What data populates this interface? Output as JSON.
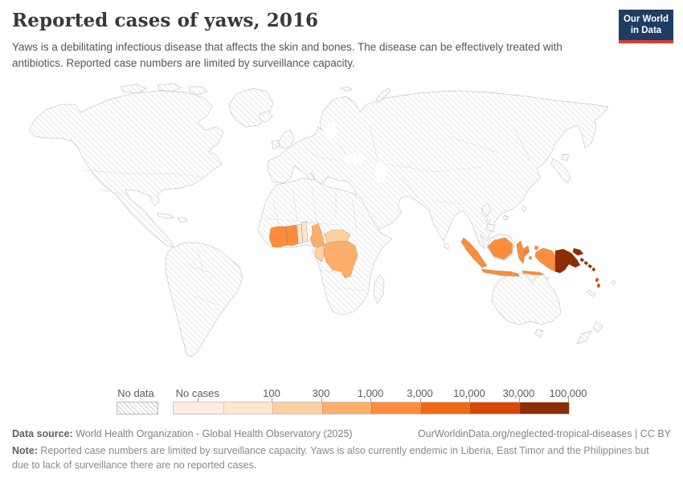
{
  "header": {
    "title": "Reported cases of yaws, 2016",
    "subtitle": "Yaws is a debilitating infectious disease that affects the skin and bones. The disease can be effectively treated with antibiotics. Reported case numbers are limited by surveillance capacity."
  },
  "logo": {
    "line1": "Our World",
    "line2": "in Data",
    "bg_color": "#1d3d63",
    "accent_color": "#dc3e32"
  },
  "chart_data": {
    "type": "choropleth_map",
    "title": "Reported cases of yaws, 2016",
    "year": "2016",
    "unit": "reported cases of yaws",
    "projection": "World",
    "legend": {
      "no_data": {
        "label": "No data",
        "pattern": "diagonal-hatch"
      },
      "bins": [
        {
          "label": "No cases",
          "label_align": "center",
          "range": "no cases",
          "color": "#fbeee1"
        },
        {
          "label": "100",
          "range": "0–100",
          "color": "#fee6ce"
        },
        {
          "label": "300",
          "range": "100–300",
          "color": "#fdd0a2"
        },
        {
          "label": "1,000",
          "range": "300–1,000",
          "color": "#fdae6b"
        },
        {
          "label": "3,000",
          "range": "1,000–3,000",
          "color": "#fd8d3c"
        },
        {
          "label": "10,000",
          "range": "3,000–10,000",
          "color": "#f16913"
        },
        {
          "label": "30,000",
          "range": "10,000–30,000",
          "color": "#d94801"
        },
        {
          "label": "100,000",
          "range": "30,000–100,000",
          "color": "#8c2d04"
        }
      ]
    },
    "entities": [
      {
        "id": "cote-divoire",
        "name": "Cote d'Ivoire",
        "value_range": "1,000–3,000",
        "color": "#fd8d3c"
      },
      {
        "id": "ghana",
        "name": "Ghana",
        "value_range": "1,000–3,000",
        "color": "#fd8d3c"
      },
      {
        "id": "togo",
        "name": "Togo",
        "value_range": "0–100",
        "color": "#fee6ce"
      },
      {
        "id": "benin",
        "name": "Benin",
        "value_range": "0–100",
        "color": "#fee6ce"
      },
      {
        "id": "cameroon",
        "name": "Cameroon",
        "value_range": "300–1,000",
        "color": "#fdae6b"
      },
      {
        "id": "central-african-republic",
        "name": "Central African Republic",
        "value_range": "100–300",
        "color": "#fdd0a2"
      },
      {
        "id": "congo",
        "name": "Congo",
        "value_range": "100–300",
        "color": "#fdd0a2"
      },
      {
        "id": "democratic-republic-of-congo",
        "name": "Democratic Republic of Congo",
        "value_range": "300–1,000",
        "color": "#fdae6b"
      },
      {
        "id": "indonesia",
        "name": "Indonesia",
        "value_range": "1,000–3,000",
        "color": "#fd8d3c"
      },
      {
        "id": "papua-new-guinea",
        "name": "Papua New Guinea",
        "value_range": "30,000–100,000",
        "color": "#8c2d04"
      },
      {
        "id": "solomon-islands",
        "name": "Solomon Islands",
        "value_range": "30,000–100,000",
        "color": "#8c2d04"
      },
      {
        "id": "vanuatu",
        "name": "Vanuatu",
        "value_range": "10,000–30,000",
        "color": "#d94801"
      }
    ]
  },
  "footer": {
    "sources_label": "Data source:",
    "sources": " World Health Organization - Global Health Observatory (2025)",
    "url": "OurWorldinData.org/neglected-tropical-diseases | CC BY",
    "note_label": "Note:",
    "note": " Reported case numbers are limited by surveillance capacity. Yaws is also currently endemic in Liberia, East Timor and the Philippines but due to lack of surveillance there are no reported cases."
  }
}
